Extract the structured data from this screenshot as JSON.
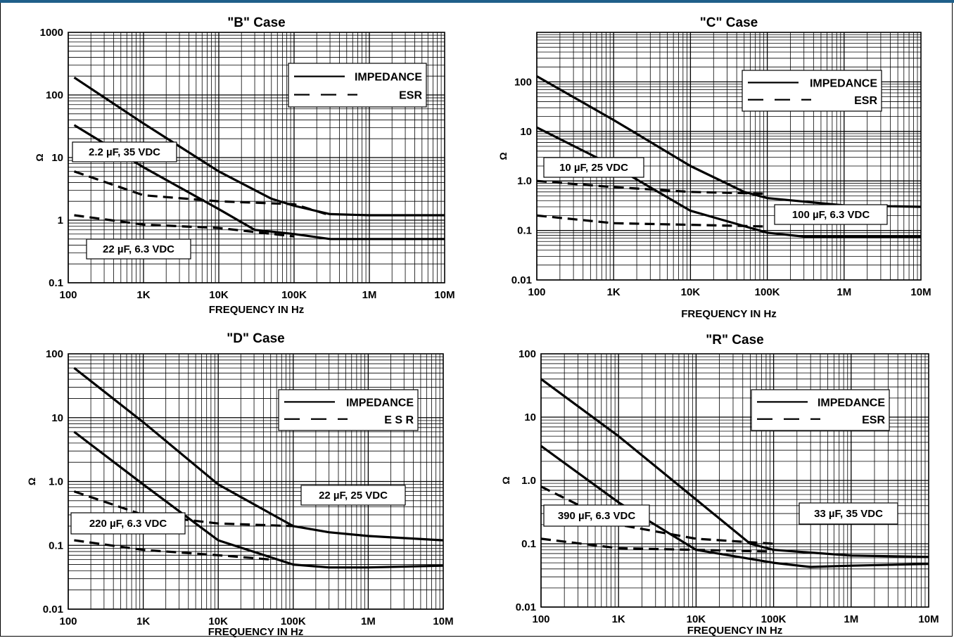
{
  "chart_data": [
    {
      "type": "line",
      "title": "\"B\" Case",
      "xlabel": "FREQUENCY IN Hz",
      "ylabel": "Ω",
      "xscale": "log",
      "yscale": "log",
      "xlim": [
        100,
        10000000
      ],
      "ylim": [
        0.1,
        1000
      ],
      "xticks": [
        "100",
        "1K",
        "10K",
        "100K",
        "1M",
        "10M"
      ],
      "yticks": [
        "0.1",
        "1",
        "10",
        "100",
        "1000"
      ],
      "grid": true,
      "legend": {
        "position": "top-right",
        "entries": [
          "IMPEDANCE",
          "ESR"
        ]
      },
      "annotations": [
        "2.2 µF, 35 VDC",
        "22 µF, 6.3 VDC"
      ],
      "series": [
        {
          "kind": "impedance",
          "points": [
            [
              120,
              190
            ],
            [
              1000,
              35
            ],
            [
              10000,
              6
            ],
            [
              50000,
              2.2
            ],
            [
              100000,
              1.7
            ],
            [
              300000,
              1.25
            ],
            [
              1000000,
              1.2
            ],
            [
              10000000,
              1.2
            ]
          ]
        },
        {
          "kind": "impedance",
          "points": [
            [
              120,
              33
            ],
            [
              1000,
              7
            ],
            [
              10000,
              1.5
            ],
            [
              30000,
              0.7
            ],
            [
              100000,
              0.6
            ],
            [
              300000,
              0.5
            ],
            [
              1000000,
              0.5
            ],
            [
              10000000,
              0.5
            ]
          ]
        },
        {
          "kind": "esr",
          "points": [
            [
              120,
              6
            ],
            [
              1000,
              2.5
            ],
            [
              10000,
              2
            ],
            [
              100000,
              1.8
            ],
            [
              300000,
              1.2
            ]
          ]
        },
        {
          "kind": "esr",
          "points": [
            [
              120,
              1.2
            ],
            [
              1000,
              0.85
            ],
            [
              10000,
              0.75
            ],
            [
              100000,
              0.55
            ]
          ]
        }
      ]
    },
    {
      "type": "line",
      "title": "\"C\" Case",
      "xlabel": "FREQUENCY IN Hz",
      "ylabel": "Ω",
      "xscale": "log",
      "yscale": "log",
      "xlim": [
        100,
        10000000
      ],
      "ylim": [
        0.01,
        1000
      ],
      "xticks": [
        "100",
        "1K",
        "10K",
        "100K",
        "1M",
        "10M"
      ],
      "yticks": [
        "0.01",
        "0.1",
        "1.0",
        "10",
        "100"
      ],
      "grid": true,
      "legend": {
        "position": "top-right",
        "entries": [
          "IMPEDANCE",
          "ESR"
        ]
      },
      "annotations": [
        "10 µF, 25 VDC",
        "100 µF, 6.3 VDC"
      ],
      "series": [
        {
          "kind": "impedance",
          "points": [
            [
              100,
              130
            ],
            [
              1000,
              17
            ],
            [
              10000,
              2
            ],
            [
              50000,
              0.6
            ],
            [
              100000,
              0.45
            ],
            [
              1000000,
              0.32
            ],
            [
              10000000,
              0.3
            ]
          ]
        },
        {
          "kind": "impedance",
          "points": [
            [
              100,
              12
            ],
            [
              1000,
              2
            ],
            [
              10000,
              0.25
            ],
            [
              100000,
              0.09
            ],
            [
              300000,
              0.075
            ],
            [
              1000000,
              0.075
            ],
            [
              10000000,
              0.075
            ]
          ]
        },
        {
          "kind": "esr",
          "points": [
            [
              100,
              1
            ],
            [
              1000,
              0.75
            ],
            [
              10000,
              0.6
            ],
            [
              100000,
              0.55
            ]
          ]
        },
        {
          "kind": "esr",
          "points": [
            [
              100,
              0.2
            ],
            [
              1000,
              0.14
            ],
            [
              10000,
              0.13
            ],
            [
              100000,
              0.12
            ]
          ]
        }
      ]
    },
    {
      "type": "line",
      "title": "\"D\" Case",
      "xlabel": "FREQUENCY IN  Hz",
      "ylabel": "Ω",
      "xscale": "log",
      "yscale": "log",
      "xlim": [
        100,
        10000000
      ],
      "ylim": [
        0.01,
        100
      ],
      "xticks": [
        "100",
        "1K",
        "10K",
        "100K",
        "1M",
        "10M"
      ],
      "yticks": [
        "0.01",
        "0.1",
        "1.0",
        "10",
        "100"
      ],
      "grid": true,
      "legend": {
        "position": "top-right",
        "entries": [
          "IMPEDANCE",
          "E S R"
        ]
      },
      "annotations": [
        "22 µF, 25 VDC",
        "220 µF, 6.3 VDC"
      ],
      "series": [
        {
          "kind": "impedance",
          "points": [
            [
              120,
              60
            ],
            [
              1000,
              8.5
            ],
            [
              10000,
              0.9
            ],
            [
              100000,
              0.2
            ],
            [
              300000,
              0.16
            ],
            [
              1000000,
              0.14
            ],
            [
              10000000,
              0.12
            ]
          ]
        },
        {
          "kind": "impedance",
          "points": [
            [
              120,
              6
            ],
            [
              1000,
              0.9
            ],
            [
              10000,
              0.12
            ],
            [
              100000,
              0.05
            ],
            [
              300000,
              0.045
            ],
            [
              1000000,
              0.045
            ],
            [
              10000000,
              0.048
            ]
          ]
        },
        {
          "kind": "esr",
          "points": [
            [
              120,
              0.7
            ],
            [
              1000,
              0.3
            ],
            [
              10000,
              0.22
            ],
            [
              100000,
              0.2
            ]
          ]
        },
        {
          "kind": "esr",
          "points": [
            [
              120,
              0.12
            ],
            [
              1000,
              0.085
            ],
            [
              10000,
              0.07
            ],
            [
              50000,
              0.06
            ]
          ]
        }
      ]
    },
    {
      "type": "line",
      "title": "\"R\" Case",
      "xlabel": "FREQUENCY IN Hz",
      "ylabel": "Ω",
      "xscale": "log",
      "yscale": "log",
      "xlim": [
        100,
        10000000
      ],
      "ylim": [
        0.01,
        100
      ],
      "xticks": [
        "100",
        "1K",
        "10K",
        "100K",
        "1M",
        "10M"
      ],
      "yticks": [
        "0.01",
        "0.1",
        "1.0",
        "10",
        "100"
      ],
      "grid": true,
      "legend": {
        "position": "top-right",
        "entries": [
          "IMPEDANCE",
          "ESR"
        ]
      },
      "annotations": [
        "390 µF, 6.3 VDC",
        "33 µF, 35 VDC"
      ],
      "series": [
        {
          "kind": "impedance",
          "points": [
            [
              100,
              40
            ],
            [
              1000,
              5
            ],
            [
              10000,
              0.5
            ],
            [
              50000,
              0.1
            ],
            [
              100000,
              0.08
            ],
            [
              1000000,
              0.065
            ],
            [
              10000000,
              0.062
            ]
          ]
        },
        {
          "kind": "impedance",
          "points": [
            [
              100,
              3.5
            ],
            [
              1000,
              0.45
            ],
            [
              10000,
              0.08
            ],
            [
              100000,
              0.05
            ],
            [
              300000,
              0.043
            ],
            [
              1000000,
              0.045
            ],
            [
              10000000,
              0.048
            ]
          ]
        },
        {
          "kind": "esr",
          "points": [
            [
              100,
              0.8
            ],
            [
              1000,
              0.2
            ],
            [
              10000,
              0.12
            ],
            [
              100000,
              0.1
            ]
          ]
        },
        {
          "kind": "esr",
          "points": [
            [
              100,
              0.12
            ],
            [
              1000,
              0.085
            ],
            [
              10000,
              0.08
            ],
            [
              100000,
              0.075
            ]
          ]
        }
      ]
    }
  ]
}
